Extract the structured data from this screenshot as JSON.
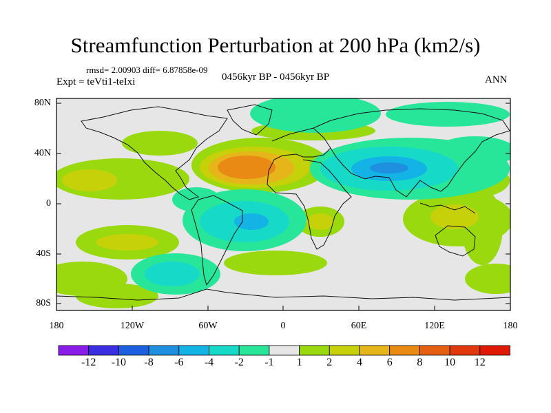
{
  "title": "Streamfunction Perturbation at 200 hPa (km2/s)",
  "stats": "rmsd= 2.00903 diff= 6.87858e-09",
  "experiment": "Expt = teVti1-teIxi",
  "period": "0456kyr BP - 0456kyr BP",
  "season": "ANN",
  "lat_labels": [
    "80N",
    "40N",
    "0",
    "40S",
    "80S"
  ],
  "lon_labels": [
    "180",
    "120W",
    "60W",
    "0",
    "60E",
    "120E",
    "180"
  ],
  "colorbar": {
    "labels": [
      "-12",
      "-10",
      "-8",
      "-6",
      "-4",
      "-2",
      "-1",
      "1",
      "2",
      "4",
      "6",
      "8",
      "10",
      "12"
    ],
    "colors": [
      "#8a1ce8",
      "#3a2ee0",
      "#1c5fe0",
      "#1f8fe0",
      "#13b3e6",
      "#17d9c8",
      "#27e69a",
      "#e6e6e6",
      "#99d90d",
      "#c6d10a",
      "#e6b51a",
      "#e88a14",
      "#e45f10",
      "#e03a0c",
      "#e01806"
    ]
  }
}
